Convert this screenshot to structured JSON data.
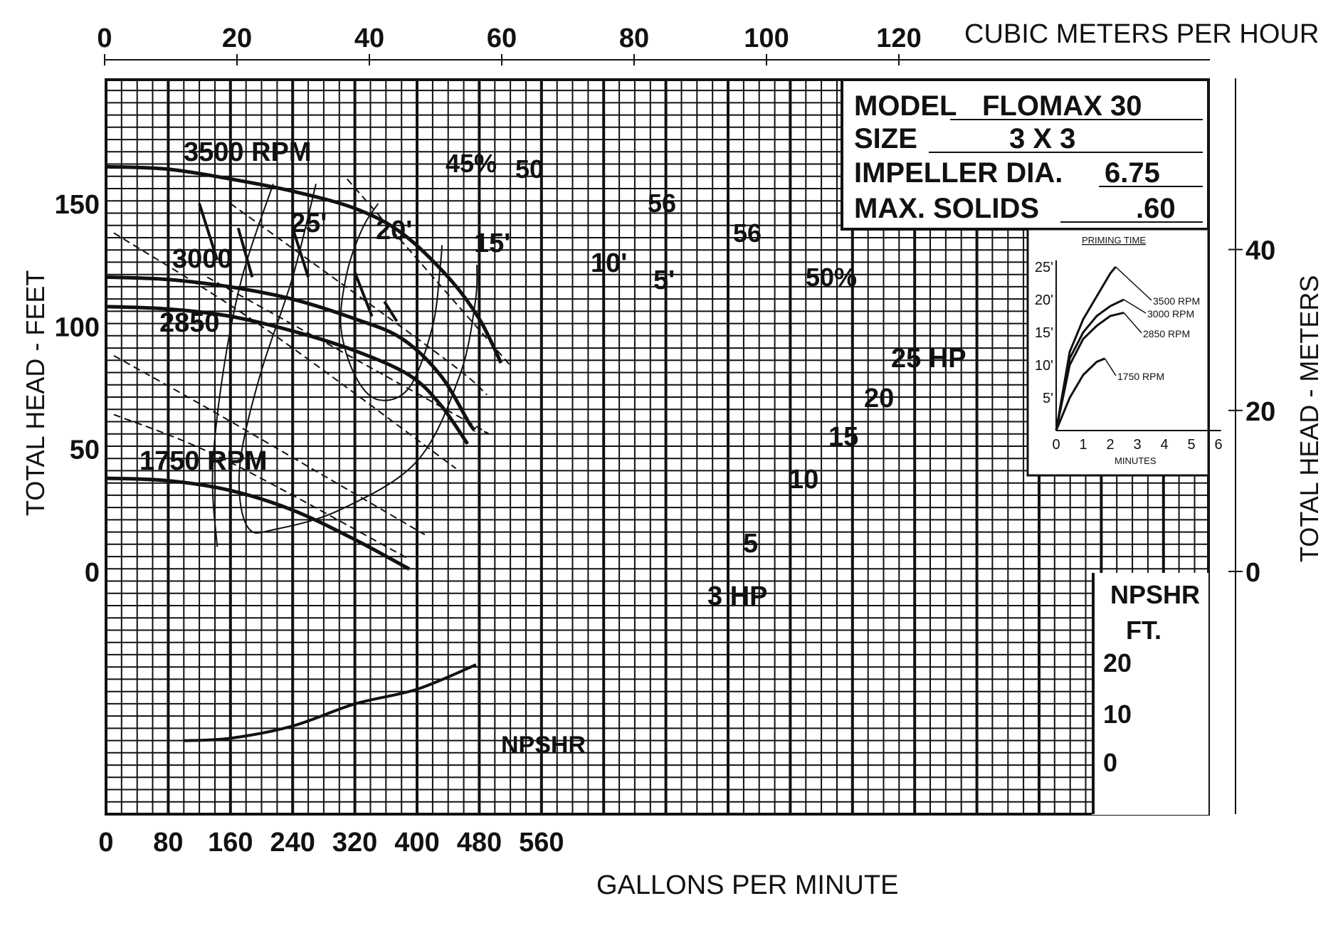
{
  "chart_data": {
    "type": "line",
    "x_axis": {
      "label": "GALLONS PER MINUTE",
      "range": [
        0,
        720
      ],
      "ticks": [
        "0",
        "80",
        "160",
        "240",
        "320",
        "400",
        "480",
        "560"
      ]
    },
    "x2_axis": {
      "label": "CUBIC METERS PER HOUR",
      "ticks": [
        "0",
        "20",
        "40",
        "60",
        "80",
        "100",
        "120"
      ]
    },
    "y_axis": {
      "label": "TOTAL HEAD - FEET",
      "range": [
        -100,
        200
      ],
      "ticks": [
        "0",
        "50",
        "100",
        "150"
      ]
    },
    "y2_axis": {
      "label": "TOTAL HEAD - METERS",
      "ticks": [
        "0",
        "20",
        "40"
      ]
    },
    "info_box": [
      {
        "key": "MODEL",
        "value": "FLOMAX 30"
      },
      {
        "key": "SIZE",
        "value": "3 X 3"
      },
      {
        "key": "IMPELLER DIA.",
        "value": "6.75"
      },
      {
        "key": "MAX. SOLIDS",
        "value": ".60"
      }
    ],
    "rpm_curves": [
      {
        "label": "3500 RPM",
        "points": [
          [
            0,
            165
          ],
          [
            80,
            164
          ],
          [
            160,
            160
          ],
          [
            240,
            155
          ],
          [
            320,
            148
          ],
          [
            380,
            138
          ],
          [
            440,
            120
          ],
          [
            480,
            103
          ],
          [
            508,
            85
          ]
        ]
      },
      {
        "label": "3000",
        "points": [
          [
            0,
            120
          ],
          [
            80,
            119
          ],
          [
            160,
            116
          ],
          [
            240,
            111
          ],
          [
            320,
            103
          ],
          [
            380,
            95
          ],
          [
            430,
            80
          ],
          [
            468,
            60
          ],
          [
            475,
            58
          ]
        ]
      },
      {
        "label": "2850",
        "points": [
          [
            0,
            108
          ],
          [
            80,
            107
          ],
          [
            160,
            104
          ],
          [
            240,
            98
          ],
          [
            320,
            90
          ],
          [
            390,
            80
          ],
          [
            430,
            68
          ],
          [
            465,
            52
          ]
        ]
      },
      {
        "label": "1750 RPM",
        "points": [
          [
            0,
            38
          ],
          [
            80,
            37
          ],
          [
            160,
            33
          ],
          [
            240,
            25
          ],
          [
            320,
            13
          ],
          [
            390,
            1
          ]
        ]
      }
    ],
    "hp_lines": [
      {
        "label": "25 HP",
        "points": [
          [
            310,
            160
          ],
          [
            520,
            84
          ]
        ]
      },
      {
        "label": "20",
        "points": [
          [
            160,
            150
          ],
          [
            430,
            88
          ],
          [
            490,
            72
          ]
        ]
      },
      {
        "label": "15",
        "points": [
          [
            130,
            120
          ],
          [
            460,
            62
          ],
          [
            480,
            58
          ]
        ]
      },
      {
        "label": "10",
        "points": [
          [
            10,
            138
          ],
          [
            200,
            100
          ],
          [
            450,
            42
          ]
        ]
      },
      {
        "label": "5",
        "points": [
          [
            10,
            88
          ],
          [
            150,
            63
          ],
          [
            410,
            15
          ]
        ]
      },
      {
        "label": "3 HP",
        "points": [
          [
            10,
            64
          ],
          [
            150,
            46
          ],
          [
            390,
            5
          ]
        ]
      }
    ],
    "efficiency_curves": [
      {
        "label": "45%",
        "points": [
          [
            215,
            158
          ],
          [
            175,
            120
          ],
          [
            150,
            80
          ],
          [
            137,
            40
          ],
          [
            143,
            10
          ]
        ]
      },
      {
        "label": "50",
        "points": [
          [
            270,
            158
          ],
          [
            240,
            120
          ],
          [
            200,
            82
          ],
          [
            175,
            50
          ],
          [
            172,
            30
          ],
          [
            185,
            17
          ],
          [
            215,
            17
          ],
          [
            300,
            25
          ],
          [
            400,
            45
          ],
          [
            455,
            80
          ],
          [
            475,
            110
          ],
          [
            477,
            125
          ]
        ]
      },
      {
        "label": "56",
        "points": [
          [
            350,
            150
          ],
          [
            330,
            140
          ],
          [
            310,
            122
          ],
          [
            302,
            100
          ],
          [
            320,
            80
          ],
          [
            350,
            70
          ],
          [
            390,
            75
          ],
          [
            420,
            100
          ],
          [
            430,
            125
          ],
          [
            432,
            133
          ]
        ]
      },
      {
        "label": "50%",
        "points": [
          [
            477,
            125
          ]
        ]
      }
    ],
    "npsh_curve": {
      "label": "NPSHR",
      "axis_label": "NPSHR",
      "axis_label2": "FT.",
      "axis_ticks": [
        "20",
        "10",
        "0"
      ],
      "points": [
        [
          100,
          -69
        ],
        [
          160,
          -68
        ],
        [
          240,
          -63
        ],
        [
          320,
          -54
        ],
        [
          400,
          -48
        ],
        [
          476,
          -38
        ]
      ]
    },
    "priming_inset": {
      "title": "PRIMING TIME",
      "xlabel": "MINUTES",
      "x_ticks": [
        "0",
        "1",
        "2",
        "3",
        "4",
        "5",
        "6"
      ],
      "y_ticks": [
        "25'",
        "20'",
        "15'",
        "10'",
        "5'"
      ],
      "series": [
        {
          "name": "3500 RPM",
          "points": [
            [
              0,
              0
            ],
            [
              0.5,
              12
            ],
            [
              1,
              17
            ],
            [
              1.5,
              20.5
            ],
            [
              2,
              24
            ],
            [
              2.2,
              25
            ]
          ]
        },
        {
          "name": "3000 RPM",
          "points": [
            [
              0,
              0
            ],
            [
              0.5,
              11
            ],
            [
              1,
              15
            ],
            [
              1.5,
              17.5
            ],
            [
              2,
              19
            ],
            [
              2.5,
              20
            ]
          ]
        },
        {
          "name": "2850 RPM",
          "points": [
            [
              0,
              0
            ],
            [
              0.5,
              10
            ],
            [
              1,
              14
            ],
            [
              1.5,
              16
            ],
            [
              2,
              17.5
            ],
            [
              2.5,
              18
            ]
          ]
        },
        {
          "name": "1750 RPM",
          "points": [
            [
              0,
              0
            ],
            [
              0.5,
              5
            ],
            [
              1,
              8.5
            ],
            [
              1.5,
              10.5
            ],
            [
              1.8,
              11
            ]
          ]
        }
      ]
    },
    "suction_lift_labels": [
      {
        "label": "25'",
        "points": [
          [
            120,
            150
          ],
          [
            143,
            127
          ]
        ]
      },
      {
        "label": "20'",
        "points": [
          [
            170,
            140
          ],
          [
            188,
            120
          ]
        ]
      },
      {
        "label": "15'",
        "points": [
          [
            240,
            140
          ],
          [
            260,
            120
          ]
        ]
      },
      {
        "label": "10'",
        "points": [
          [
            320,
            122
          ],
          [
            342,
            104
          ]
        ]
      },
      {
        "label": "5'",
        "points": [
          [
            358,
            110
          ],
          [
            374,
            102
          ]
        ]
      }
    ]
  }
}
